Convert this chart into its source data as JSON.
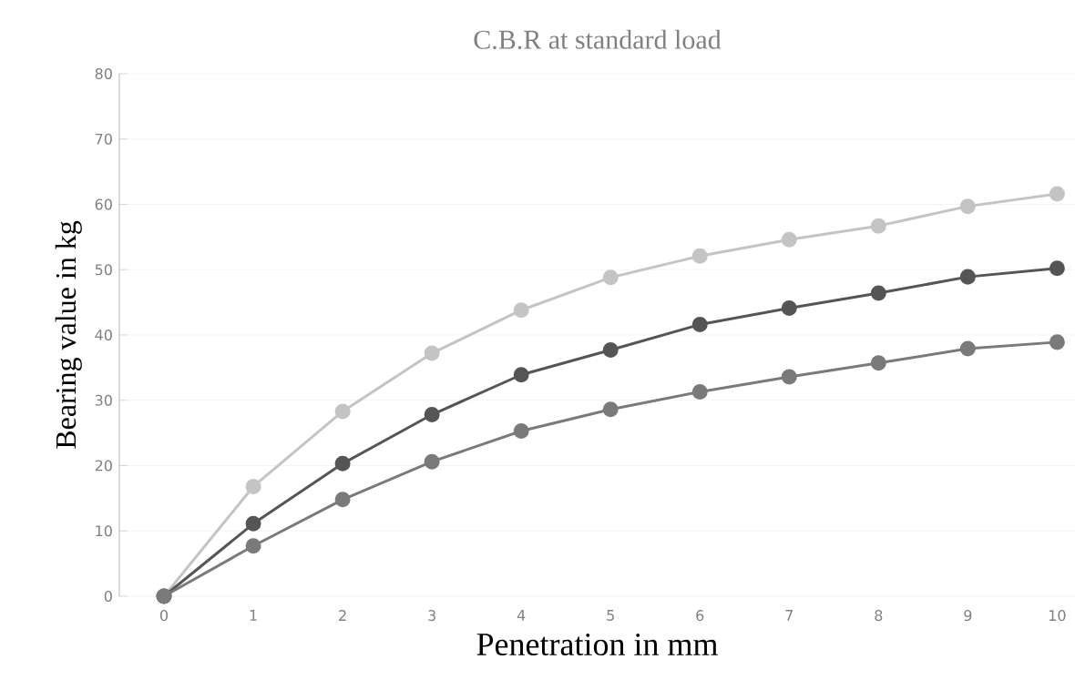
{
  "chart_data": {
    "type": "line",
    "title": "C.B.R at standard load",
    "xlabel": "Penetration in mm",
    "ylabel": "Bearing value in kg",
    "categories": [
      "0",
      "1",
      "2",
      "3",
      "4",
      "5",
      "6",
      "7",
      "8",
      "9",
      "10"
    ],
    "series": [
      {
        "color": "#c4c4c4",
        "values": [
          0,
          16.8,
          28.3,
          37.2,
          43.8,
          48.8,
          52.1,
          54.6,
          56.7,
          59.7,
          61.6
        ]
      },
      {
        "color": "#555555",
        "values": [
          0,
          11.1,
          20.3,
          27.8,
          33.9,
          37.7,
          41.6,
          44.1,
          46.4,
          48.9,
          50.2
        ]
      },
      {
        "color": "#7a7a7a",
        "values": [
          0,
          7.7,
          14.8,
          20.6,
          25.3,
          28.6,
          31.3,
          33.6,
          35.7,
          37.9,
          38.9
        ]
      }
    ],
    "ylim": [
      0,
      80
    ],
    "yticks": [
      0,
      10,
      20,
      30,
      40,
      50,
      60,
      70,
      80
    ],
    "grid": "y",
    "marker": "circle",
    "line_style": "solid"
  }
}
